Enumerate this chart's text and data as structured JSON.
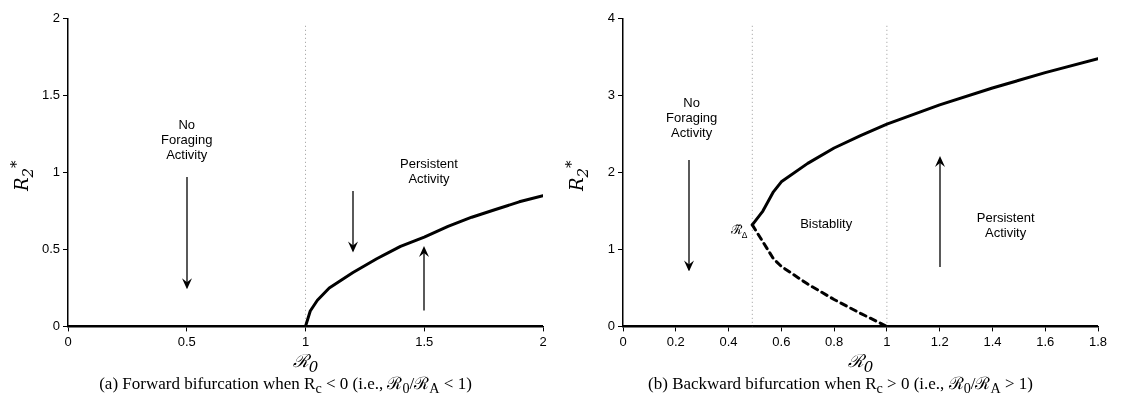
{
  "chart_data": [
    {
      "type": "line",
      "title": "(a) Forward bifurcation when R$_{c}$ < 0 (i.e., ℛ$_{0}$/ℛ$_{A}$ < 1)",
      "xlabel": "ℛ$_{0}$",
      "ylabel": "R$_{2}$$^{*}$",
      "series": [
        {
          "color": "#000000",
          "x": [
            0,
            2
          ],
          "values": [
            0,
            0
          ]
        },
        {
          "color": "#000000",
          "x": [
            1,
            1.02,
            1.05,
            1.1,
            1.2,
            1.3,
            1.4,
            1.5,
            1.6,
            1.7,
            1.8,
            1.9,
            2
          ],
          "values": [
            0,
            0.1,
            0.17,
            0.25,
            0.35,
            0.44,
            0.52,
            0.58,
            0.65,
            0.71,
            0.76,
            0.81,
            0.85
          ]
        }
      ],
      "xlim": [
        0,
        2
      ],
      "xticks": [
        0,
        0.5,
        1,
        1.5,
        2
      ],
      "ylim": [
        0,
        2
      ],
      "yticks": [
        0,
        0.5,
        1,
        1.5,
        2
      ],
      "ref_lines": [
        {
          "axis": "x",
          "value": 1,
          "color": "#999999",
          "line_style": "dotted"
        }
      ],
      "annotations": [
        "No\nForaging\nActivity",
        "Persistent\nActivity"
      ],
      "grid": false,
      "legend": false,
      "marker": "none",
      "line_style": "solid"
    },
    {
      "type": "line",
      "title": "(b) Backward bifurcation when R$_{c}$ > 0 (i.e., ℛ$_{0}$/ℛ$_{A}$ > 1)",
      "xlabel": "ℛ$_{0}$",
      "ylabel": "R$_{2}$$^{*}$",
      "series": [
        {
          "color": "#000000",
          "x": [
            0,
            1.8
          ],
          "values": [
            0,
            0
          ]
        },
        {
          "color": "#000000",
          "x": [
            0.49,
            0.53,
            0.57,
            0.6,
            0.7,
            0.8,
            0.9,
            1.0,
            1.2,
            1.4,
            1.6,
            1.8
          ],
          "values": [
            1.32,
            1.5,
            1.75,
            1.88,
            2.12,
            2.32,
            2.48,
            2.63,
            2.88,
            3.1,
            3.3,
            3.48
          ]
        },
        {
          "color": "#000000",
          "line_style": "dashed",
          "x": [
            0.49,
            0.53,
            0.57,
            0.6,
            0.7,
            0.8,
            0.9,
            1.0
          ],
          "values": [
            1.32,
            1.1,
            0.88,
            0.78,
            0.55,
            0.35,
            0.17,
            0
          ]
        }
      ],
      "xlim": [
        0,
        1.8
      ],
      "xticks": [
        0,
        0.2,
        0.4,
        0.6,
        0.8,
        1,
        1.2,
        1.4,
        1.6,
        1.8
      ],
      "ylim": [
        0,
        4
      ],
      "yticks": [
        0,
        1,
        2,
        3,
        4
      ],
      "ref_lines": [
        {
          "axis": "x",
          "value": 0.49,
          "color": "#999999",
          "line_style": "dotted"
        },
        {
          "axis": "x",
          "value": 1,
          "color": "#999999",
          "line_style": "dotted"
        }
      ],
      "annotations": [
        {
          "text": "ℛ̃$_{Δ}$",
          "x": 0.49,
          "y": 1.32
        },
        "No\nForaging\nActivity",
        "Bistablity",
        "Persistent\nActivity"
      ],
      "grid": false,
      "legend": false,
      "marker": "none",
      "line_style": "solid"
    }
  ]
}
